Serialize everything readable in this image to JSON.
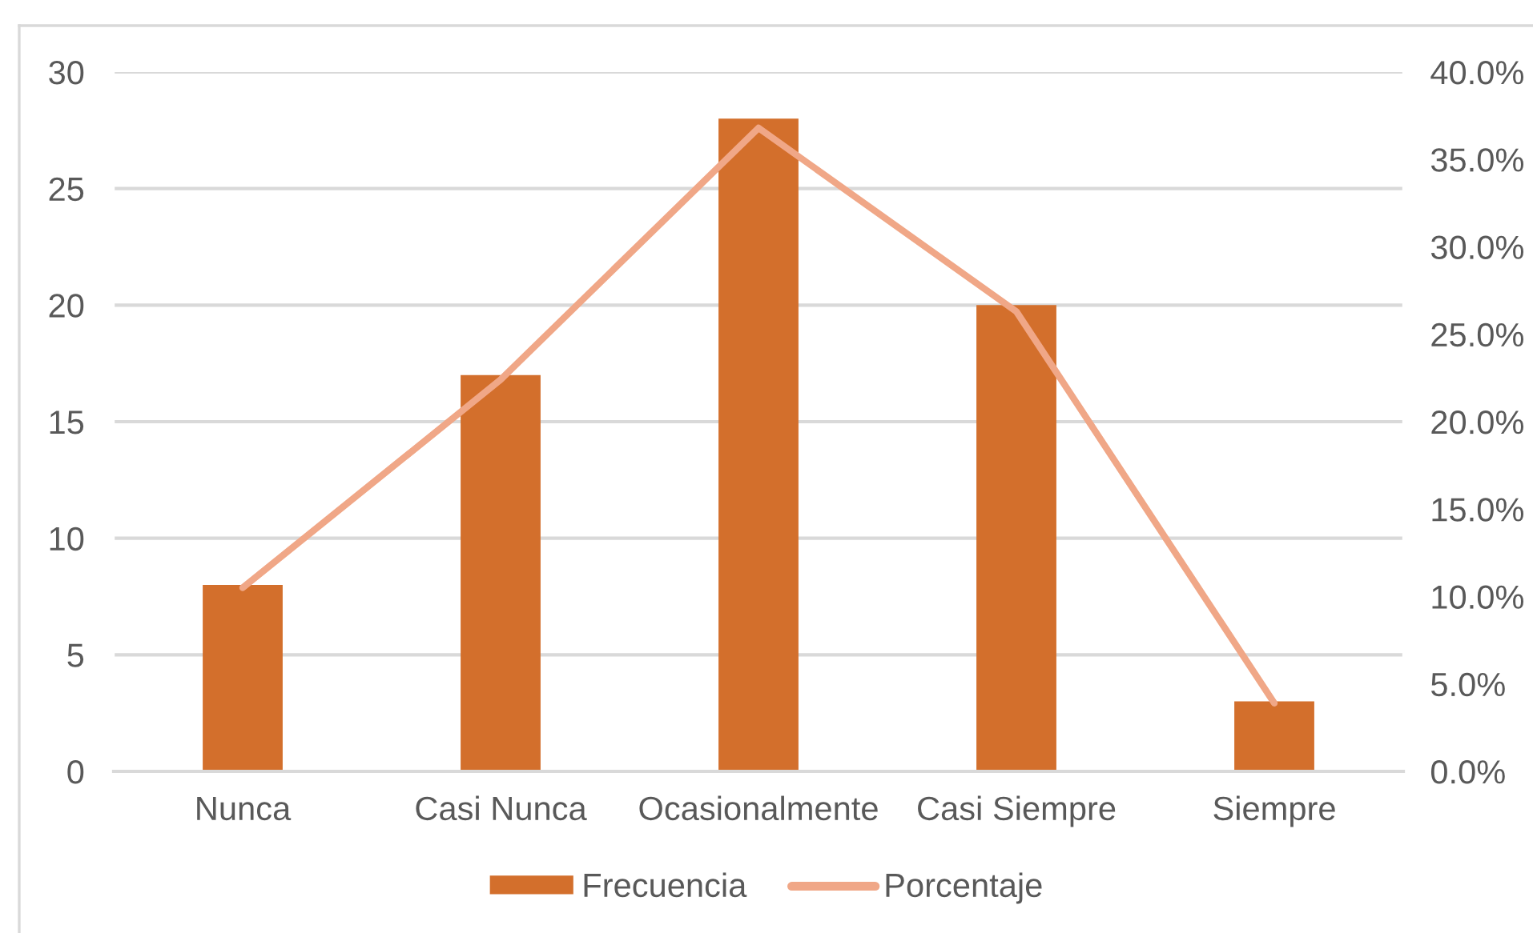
{
  "chart_data": {
    "type": "bar",
    "categories": [
      "Nunca",
      "Casi Nunca",
      "Ocasionalmente",
      "Casi Siempre",
      "Siempre"
    ],
    "series": [
      {
        "name": "Frecuencia",
        "color": "#d36f2c",
        "values": [
          8,
          17,
          28,
          20,
          3
        ]
      },
      {
        "name": "Porcentaje",
        "type": "line",
        "axis": "y2",
        "color": "#f0a787",
        "values": [
          10.5,
          22.4,
          36.8,
          26.3,
          3.9
        ]
      }
    ],
    "ylim": [
      0,
      30
    ],
    "yticks": [
      0,
      5,
      10,
      15,
      20,
      25,
      30
    ],
    "y2lim": [
      0,
      40
    ],
    "y2ticks": [
      {
        "value": 0,
        "label": "0.0%"
      },
      {
        "value": 5,
        "label": "5.0%"
      },
      {
        "value": 10,
        "label": "10.0%"
      },
      {
        "value": 15,
        "label": "15.0%"
      },
      {
        "value": 20,
        "label": "20.0%"
      },
      {
        "value": 25,
        "label": "25.0%"
      },
      {
        "value": 30,
        "label": "30.0%"
      },
      {
        "value": 35,
        "label": "35.0%"
      },
      {
        "value": 40,
        "label": "40.0%"
      }
    ],
    "grid": "y",
    "legend": "bottom"
  }
}
